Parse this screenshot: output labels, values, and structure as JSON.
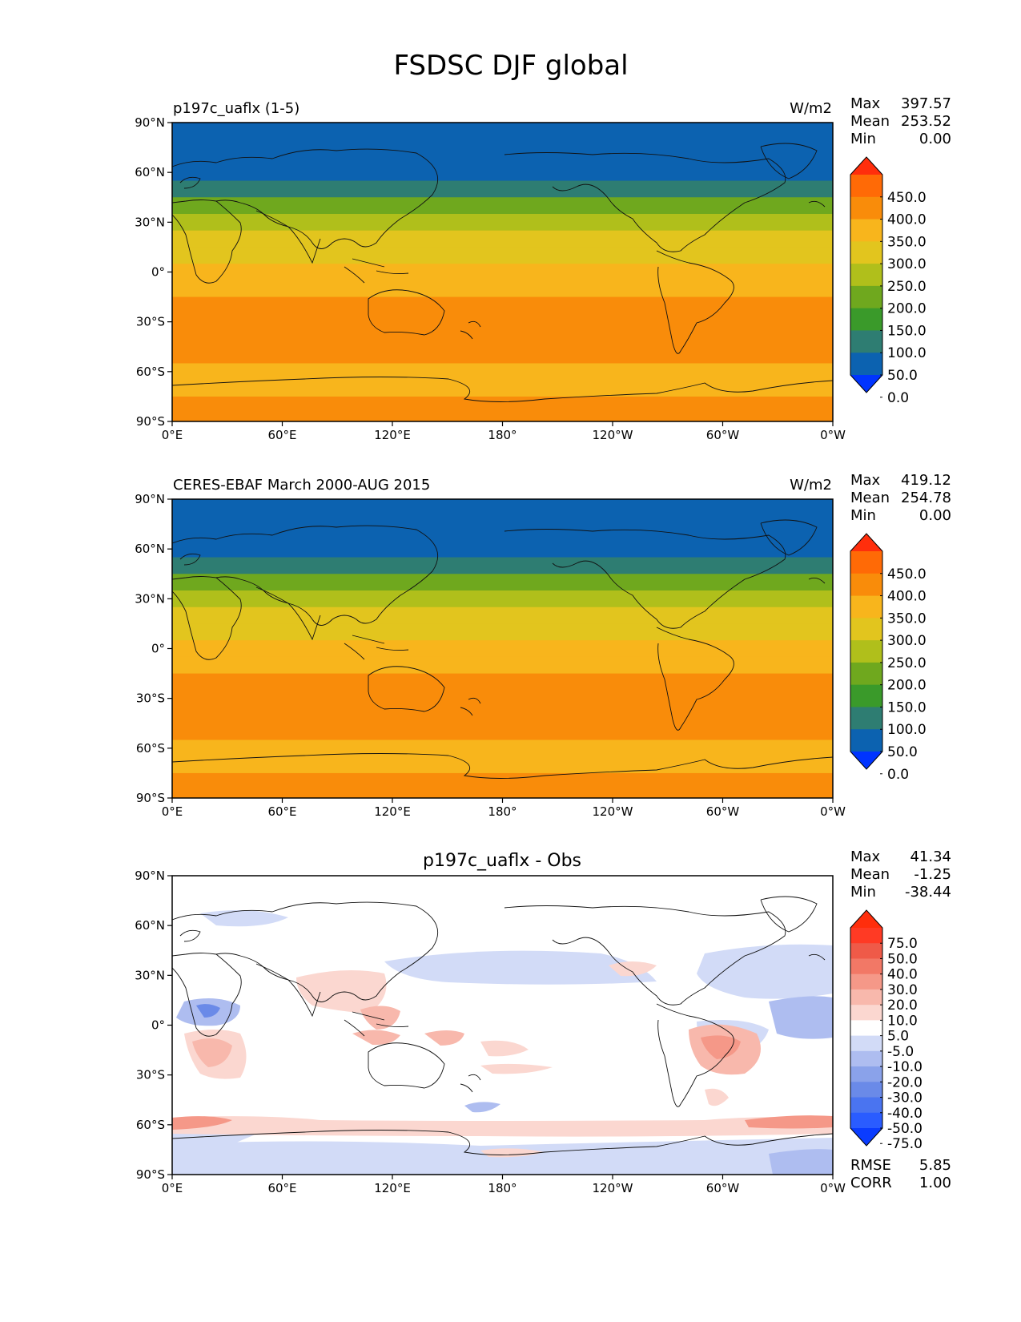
{
  "figure_title": "FSDSC DJF global",
  "lat_ticks": [
    "90°N",
    "60°N",
    "30°N",
    "0°",
    "30°S",
    "60°S",
    "90°S"
  ],
  "lon_ticks": [
    "0°E",
    "60°E",
    "120°E",
    "180°",
    "120°W",
    "60°W",
    "0°W"
  ],
  "panels": [
    {
      "left_title": "p197c_uaflx (1-5)",
      "center_title": "",
      "units": "W/m2",
      "stats": [
        {
          "label": "Max",
          "value": "397.57"
        },
        {
          "label": "Mean",
          "value": "253.52"
        },
        {
          "label": "Min",
          "value": "0.00"
        }
      ],
      "colorbar": {
        "levels": [
          0,
          50,
          100,
          150,
          200,
          250,
          300,
          350,
          400,
          450
        ],
        "labels": [
          "450.0",
          "400.0",
          "350.0",
          "300.0",
          "250.0",
          "200.0",
          "150.0",
          "100.0",
          "50.0",
          "0.0"
        ],
        "colors": [
          "#0034ff",
          "#0c62b0",
          "#2e7d72",
          "#3a9a2a",
          "#6fa81e",
          "#b0bf1b",
          "#e2c51e",
          "#f8b51c",
          "#f98c0a",
          "#ff6a06",
          "#ff2e0c"
        ]
      },
      "zonal_mean_by_lat": [
        [
          90,
          0
        ],
        [
          85,
          8
        ],
        [
          75,
          10
        ],
        [
          65,
          22
        ],
        [
          55,
          60
        ],
        [
          45,
          130
        ],
        [
          35,
          190
        ],
        [
          25,
          240
        ],
        [
          15,
          270
        ],
        [
          5,
          300
        ],
        [
          -5,
          320
        ],
        [
          -15,
          345
        ],
        [
          -25,
          375
        ],
        [
          -35,
          385
        ],
        [
          -45,
          370
        ],
        [
          -55,
          340
        ],
        [
          -65,
          325
        ],
        [
          -75,
          345
        ],
        [
          -85,
          360
        ],
        [
          -90,
          360
        ]
      ]
    },
    {
      "left_title": "CERES-EBAF March 2000-AUG 2015",
      "center_title": "",
      "units": "W/m2",
      "stats": [
        {
          "label": "Max",
          "value": "419.12"
        },
        {
          "label": "Mean",
          "value": "254.78"
        },
        {
          "label": "Min",
          "value": "0.00"
        }
      ],
      "colorbar": {
        "levels": [
          0,
          50,
          100,
          150,
          200,
          250,
          300,
          350,
          400,
          450
        ],
        "labels": [
          "450.0",
          "400.0",
          "350.0",
          "300.0",
          "250.0",
          "200.0",
          "150.0",
          "100.0",
          "50.0",
          "0.0"
        ],
        "colors": [
          "#0034ff",
          "#0c62b0",
          "#2e7d72",
          "#3a9a2a",
          "#6fa81e",
          "#b0bf1b",
          "#e2c51e",
          "#f8b51c",
          "#f98c0a",
          "#ff6a06",
          "#ff2e0c"
        ]
      },
      "zonal_mean_by_lat": [
        [
          90,
          20
        ],
        [
          85,
          22
        ],
        [
          75,
          25
        ],
        [
          65,
          30
        ],
        [
          55,
          60
        ],
        [
          45,
          130
        ],
        [
          35,
          190
        ],
        [
          25,
          240
        ],
        [
          15,
          270
        ],
        [
          5,
          300
        ],
        [
          -5,
          320
        ],
        [
          -15,
          345
        ],
        [
          -25,
          375
        ],
        [
          -35,
          385
        ],
        [
          -45,
          370
        ],
        [
          -55,
          340
        ],
        [
          -65,
          325
        ],
        [
          -75,
          345
        ],
        [
          -85,
          360
        ],
        [
          -90,
          360
        ]
      ]
    },
    {
      "left_title": "",
      "center_title": "p197c_uaflx - Obs",
      "units": "",
      "stats": [
        {
          "label": "Max",
          "value": "41.34"
        },
        {
          "label": "Mean",
          "value": "-1.25"
        },
        {
          "label": "Min",
          "value": "-38.44"
        }
      ],
      "extra_stats": [
        {
          "label": "RMSE",
          "value": "5.85"
        },
        {
          "label": "CORR",
          "value": "1.00"
        }
      ],
      "colorbar": {
        "levels": [
          -75,
          -50,
          -40,
          -30,
          -20,
          -10,
          -5,
          5,
          10,
          20,
          30,
          40,
          50,
          75
        ],
        "labels": [
          "75.0",
          "50.0",
          "40.0",
          "30.0",
          "20.0",
          "10.0",
          "5.0",
          "-5.0",
          "-10.0",
          "-20.0",
          "-30.0",
          "-40.0",
          "-50.0",
          "-75.0"
        ],
        "colors": [
          "#0a3cff",
          "#2a5cff",
          "#4a74f0",
          "#6a8ae8",
          "#8aa2ea",
          "#aebdf0",
          "#d2dbf7",
          "#ffffff",
          "#fbd7d0",
          "#f8b8ac",
          "#f59888",
          "#f27866",
          "#ef5a48",
          "#ff3a24",
          "#ff2e0c"
        ]
      }
    }
  ]
}
